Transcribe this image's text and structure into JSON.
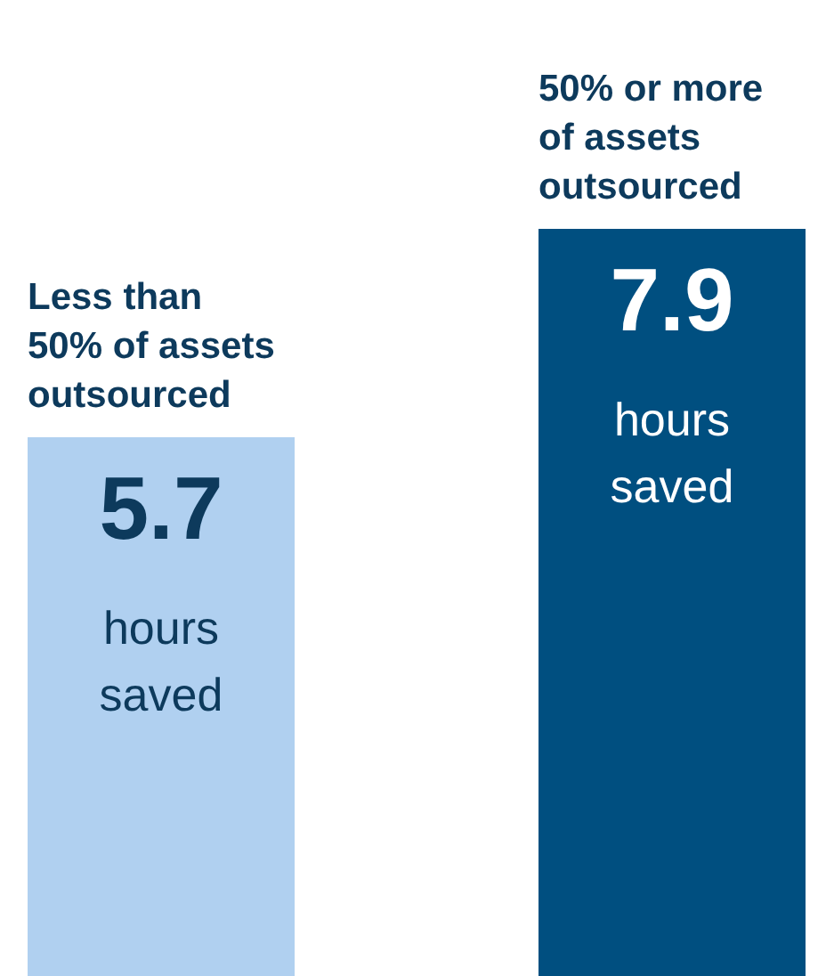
{
  "chart_data": {
    "type": "bar",
    "categories": [
      "Less than\n50% of assets\noutsourced",
      "50% or more\nof assets\noutsourced"
    ],
    "values": [
      5.7,
      7.9
    ],
    "colors": [
      "#b0d0f0",
      "#004f80"
    ],
    "data_labels": true,
    "annotations": [
      "hours\nsaved",
      "hours\nsaved"
    ]
  }
}
